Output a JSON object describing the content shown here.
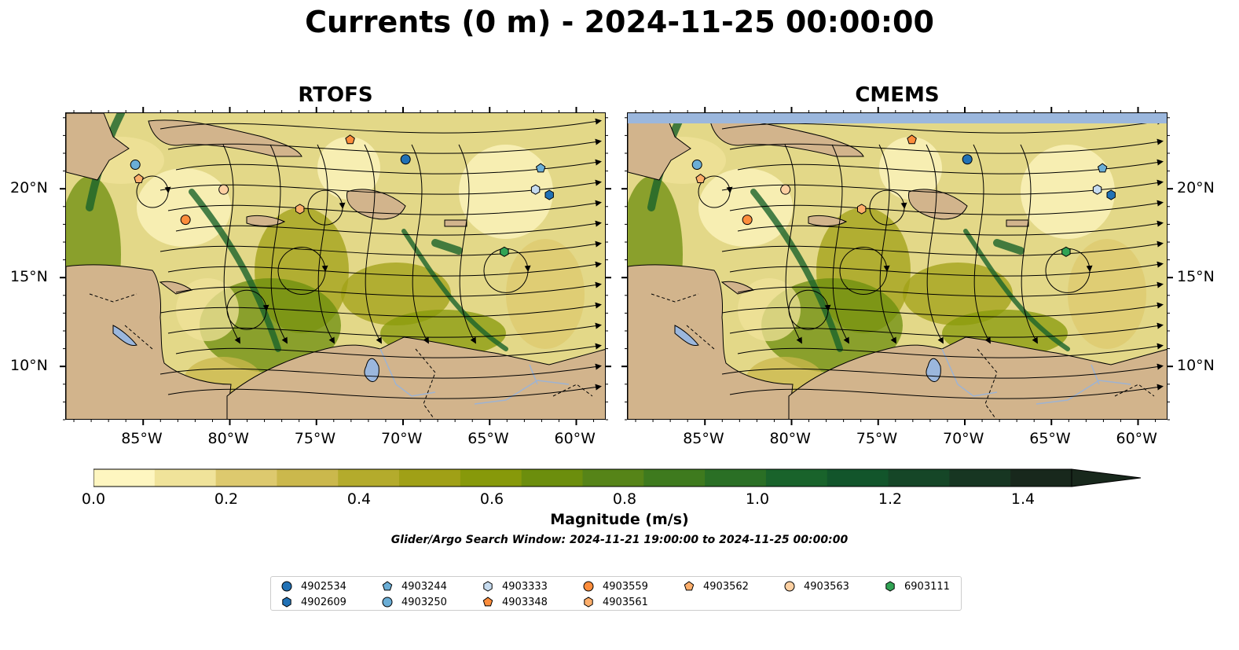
{
  "figure": {
    "title": "Currents (0 m) - 2024-11-25 00:00:00"
  },
  "panels": [
    {
      "title": "RTOFS",
      "y_axis_side": "left"
    },
    {
      "title": "CMEMS",
      "y_axis_side": "right"
    }
  ],
  "axes": {
    "lon_ticks": [
      "85°W",
      "80°W",
      "75°W",
      "70°W",
      "65°W",
      "60°W"
    ],
    "lat_ticks": [
      "20°N",
      "15°N",
      "10°N"
    ],
    "lon_range": [
      -89.5,
      -58.3
    ],
    "lat_range": [
      7.0,
      24.3
    ]
  },
  "colorbar": {
    "label": "Magnitude (m/s)",
    "ticks": [
      "0.0",
      "0.2",
      "0.4",
      "0.6",
      "0.8",
      "1.0",
      "1.2",
      "1.4"
    ],
    "range": [
      0.0,
      1.5
    ],
    "extend": "max",
    "colors": [
      "#fef6c0",
      "#f0e39a",
      "#ddc96e",
      "#cbb84c",
      "#b4ab2c",
      "#a0a016",
      "#87990a",
      "#6c8e0d",
      "#568418",
      "#3e7a1e",
      "#2a6f25",
      "#19632b",
      "#12552b",
      "#154627",
      "#173622",
      "#18281c"
    ]
  },
  "search_window": "Glider/Argo Search Window: 2024-11-21 19:00:00 to 2024-11-25 00:00:00",
  "map_style": {
    "land_color": "#d2b48c",
    "water_body_color": "#9bb7dd",
    "river_color": "#9db3d3",
    "ocean_base_color": "#e3d888"
  },
  "floats": [
    {
      "id": "4902534",
      "marker": "circle",
      "color": "#2171b5",
      "lon": -69.9,
      "lat": 21.7
    },
    {
      "id": "4902609",
      "marker": "hexagon",
      "color": "#2171b5",
      "lon": -61.6,
      "lat": 19.7
    },
    {
      "id": "4903244",
      "marker": "pentagon",
      "color": "#6baed6",
      "lon": -62.1,
      "lat": 21.2
    },
    {
      "id": "4903250",
      "marker": "circle",
      "color": "#6baed6",
      "lon": -85.5,
      "lat": 21.4
    },
    {
      "id": "4903333",
      "marker": "hexagon",
      "color": "#c6dbef",
      "lon": -62.4,
      "lat": 20.0
    },
    {
      "id": "4903348",
      "marker": "pentagon",
      "color": "#fd8d3c",
      "lon": -73.1,
      "lat": 22.8
    },
    {
      "id": "4903559",
      "marker": "circle",
      "color": "#fd8d3c",
      "lon": -82.6,
      "lat": 18.3
    },
    {
      "id": "4903561",
      "marker": "hexagon",
      "color": "#fdae6b",
      "lon": -76.0,
      "lat": 18.9
    },
    {
      "id": "4903562",
      "marker": "pentagon",
      "color": "#fdae6b",
      "lon": -85.3,
      "lat": 20.6
    },
    {
      "id": "4903563",
      "marker": "circle",
      "color": "#fdd0a2",
      "lon": -80.4,
      "lat": 20.0
    },
    {
      "id": "6903111",
      "marker": "hexagon",
      "color": "#31a354",
      "lon": -64.2,
      "lat": 16.5
    }
  ]
}
